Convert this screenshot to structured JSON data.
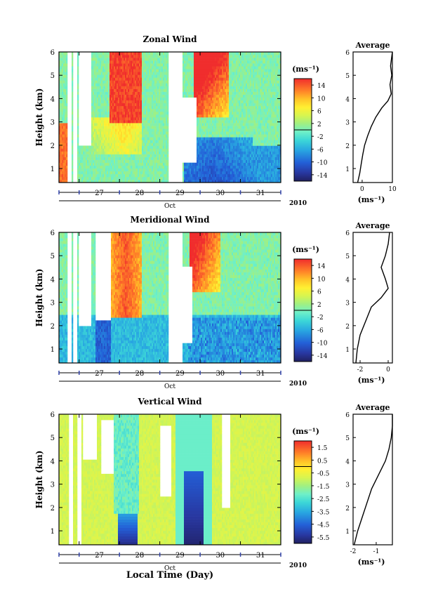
{
  "figure": {
    "xlabel": "Local Time (Day)",
    "height_label": "Height (km)",
    "month_label": "Oct",
    "year_label": "2010",
    "day_labels": [
      "27",
      "28",
      "29",
      "30",
      "31"
    ],
    "height_ticks": [
      "1",
      "2",
      "3",
      "4",
      "5",
      "6"
    ]
  },
  "chart_data": [
    {
      "type": "heatmap",
      "title": "Zonal Wind",
      "unit_label": "(ms⁻¹)",
      "x_range": [
        "2010-10-26T12:00",
        "2010-10-31T24:00"
      ],
      "ylim": [
        0.4,
        6
      ],
      "colorbar_ticks": [
        "14",
        "10",
        "6",
        "2",
        "-2",
        "-6",
        "-10",
        "-14"
      ],
      "colorbar_range": [
        -16,
        16
      ],
      "average_panel": {
        "title": "Average",
        "xlim": [
          -3,
          10
        ],
        "xticks": [
          "0",
          "10"
        ],
        "xlabel": "(ms⁻¹)",
        "profile": [
          [
            -1.5,
            0.4
          ],
          [
            -0.8,
            0.8
          ],
          [
            -0.3,
            1.2
          ],
          [
            0.2,
            1.6
          ],
          [
            0.8,
            2.0
          ],
          [
            1.8,
            2.4
          ],
          [
            3.0,
            2.8
          ],
          [
            4.5,
            3.2
          ],
          [
            6.5,
            3.6
          ],
          [
            8.5,
            3.9
          ],
          [
            9.6,
            4.2
          ],
          [
            9.2,
            4.6
          ],
          [
            9.8,
            5.0
          ],
          [
            9.4,
            5.4
          ],
          [
            9.8,
            5.8
          ],
          [
            10,
            6.0
          ]
        ]
      }
    },
    {
      "type": "heatmap",
      "title": "Meridional Wind",
      "unit_label": "(ms⁻¹)",
      "x_range": [
        "2010-10-26T12:00",
        "2010-10-31T24:00"
      ],
      "ylim": [
        0.4,
        6
      ],
      "colorbar_ticks": [
        "14",
        "10",
        "6",
        "2",
        "-2",
        "-6",
        "-10",
        "-14"
      ],
      "colorbar_range": [
        -16,
        16
      ],
      "average_panel": {
        "title": "Average",
        "xlim": [
          -2.5,
          0.3
        ],
        "xticks": [
          "-2",
          "0"
        ],
        "xlabel": "(ms⁻¹)",
        "profile": [
          [
            -2.3,
            0.4
          ],
          [
            -2.2,
            1.0
          ],
          [
            -2.0,
            1.6
          ],
          [
            -1.6,
            2.2
          ],
          [
            -1.2,
            2.8
          ],
          [
            -0.5,
            3.2
          ],
          [
            0.0,
            3.6
          ],
          [
            -0.2,
            4.0
          ],
          [
            -0.5,
            4.5
          ],
          [
            -0.2,
            5.0
          ],
          [
            0.0,
            5.5
          ],
          [
            0.1,
            6.0
          ]
        ]
      }
    },
    {
      "type": "heatmap",
      "title": "Vertical Wind",
      "unit_label": "(ms⁻¹)",
      "x_range": [
        "2010-10-26T12:00",
        "2010-10-31T24:00"
      ],
      "ylim": [
        0.4,
        6
      ],
      "colorbar_ticks": [
        "1.5",
        "0.5",
        "-0.5",
        "-1.5",
        "-2.5",
        "-3.5",
        "-4.5",
        "-5.5"
      ],
      "colorbar_range": [
        -6,
        2
      ],
      "average_panel": {
        "title": "Average",
        "xlim": [
          -2,
          -0.3
        ],
        "xticks": [
          "-2",
          "-1"
        ],
        "xlabel": "(ms⁻¹)",
        "profile": [
          [
            -1.95,
            0.4
          ],
          [
            -1.8,
            1.0
          ],
          [
            -1.6,
            1.6
          ],
          [
            -1.4,
            2.2
          ],
          [
            -1.2,
            2.8
          ],
          [
            -0.9,
            3.4
          ],
          [
            -0.6,
            4.0
          ],
          [
            -0.45,
            4.5
          ],
          [
            -0.35,
            5.0
          ],
          [
            -0.3,
            5.5
          ],
          [
            -0.3,
            6.0
          ]
        ]
      }
    }
  ]
}
